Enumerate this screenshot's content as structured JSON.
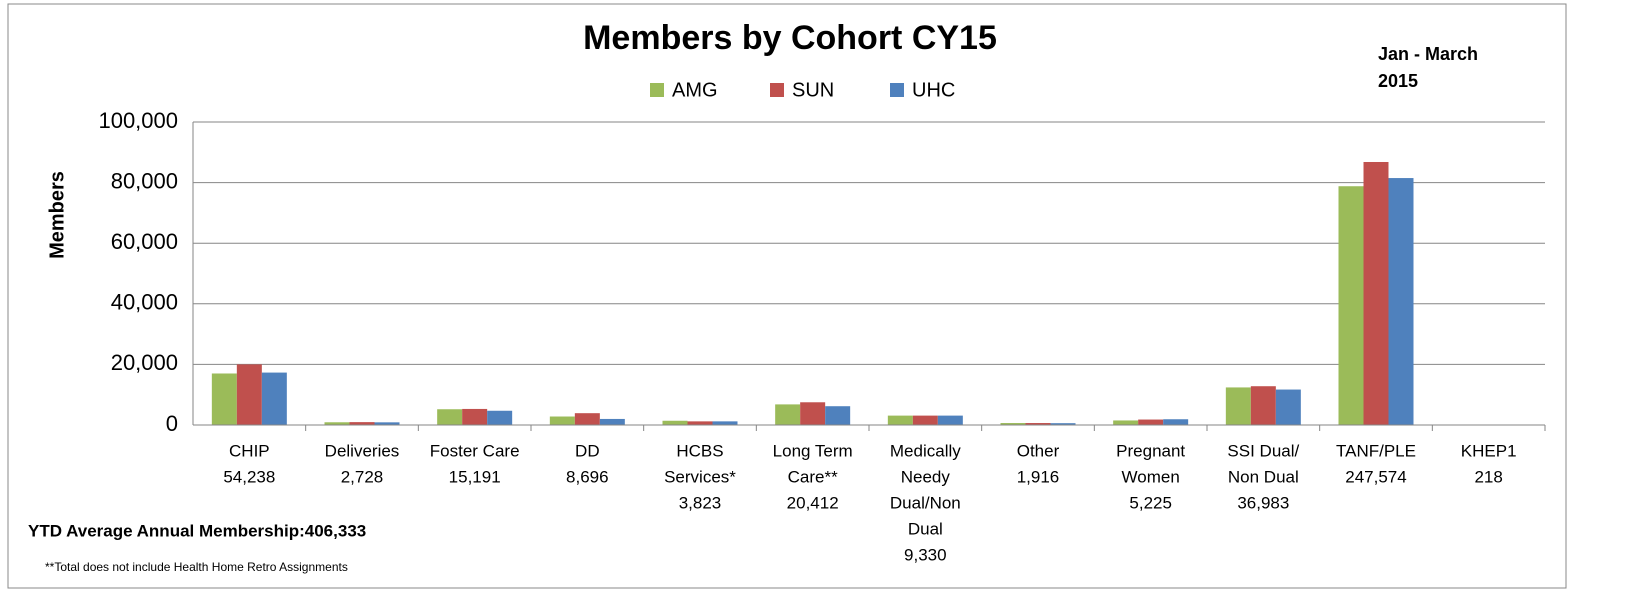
{
  "chart_data": {
    "type": "bar",
    "title": "Members by Cohort CY15",
    "subtitle": [
      "Jan - March",
      "2015"
    ],
    "y_label": "Members",
    "categories": [
      [
        "CHIP",
        "54,238"
      ],
      [
        "Deliveries",
        "2,728"
      ],
      [
        "Foster Care",
        "15,191"
      ],
      [
        "DD",
        "8,696"
      ],
      [
        "HCBS",
        "Services*",
        "3,823"
      ],
      [
        "Long Term",
        "Care**",
        "20,412"
      ],
      [
        "Medically",
        "Needy",
        "Dual/Non",
        "Dual",
        "9,330"
      ],
      [
        "Other",
        "1,916"
      ],
      [
        "Pregnant",
        "Women",
        "5,225"
      ],
      [
        "SSI Dual/",
        "Non Dual",
        "36,983"
      ],
      [
        "TANF/PLE",
        "247,574"
      ],
      [
        "KHEP1",
        "218"
      ]
    ],
    "series": [
      {
        "name": "AMG",
        "color": "#9bbb59",
        "values": [
          17000,
          900,
          5200,
          2800,
          1400,
          6800,
          3100,
          650,
          1500,
          12400,
          78800,
          70
        ]
      },
      {
        "name": "SUN",
        "color": "#c0504d",
        "values": [
          20000,
          950,
          5300,
          3900,
          1200,
          7500,
          3100,
          650,
          1800,
          12800,
          86800,
          80
        ]
      },
      {
        "name": "UHC",
        "color": "#4f81bd",
        "values": [
          17300,
          880,
          4700,
          2000,
          1200,
          6200,
          3100,
          600,
          1900,
          11700,
          81500,
          70
        ]
      }
    ],
    "ylim": [
      0,
      100000
    ],
    "yticks": [
      0,
      {
        "value": 20000,
        "label": "20,000"
      },
      {
        "value": 40000,
        "label": "40,000"
      },
      {
        "value": 60000,
        "label": "60,000"
      },
      {
        "value": 80000,
        "label": "80,000"
      },
      {
        "value": 100000,
        "label": "100,000"
      }
    ],
    "grid": true,
    "legend": "top",
    "annotations": [
      "YTD Average Annual Membership:406,333",
      "**Total does not include Health Home Retro Assignments"
    ]
  }
}
